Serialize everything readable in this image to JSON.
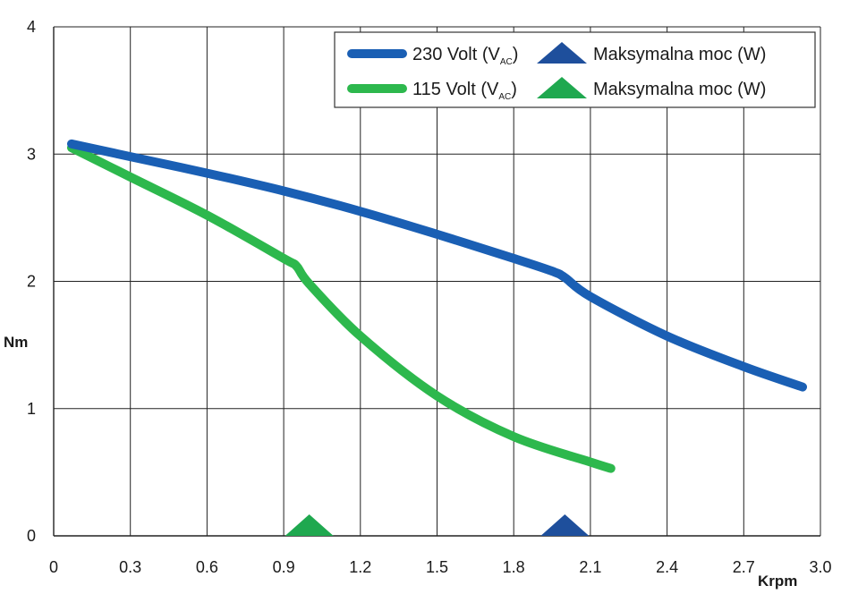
{
  "chart_data": {
    "type": "line",
    "xlabel": "Krpm",
    "ylabel": "Nm",
    "xlim": [
      0,
      3.0
    ],
    "ylim": [
      0,
      4
    ],
    "x_ticks": [
      "0",
      "0.3",
      "0.6",
      "0.9",
      "1.2",
      "1.5",
      "1.8",
      "2.1",
      "2.4",
      "2.7",
      "3.0"
    ],
    "y_ticks": [
      "0",
      "1",
      "2",
      "3",
      "4"
    ],
    "grid": true,
    "legend_position": "top-right",
    "series": [
      {
        "name": "230 Volt (V",
        "name_sub": "AC",
        "name_suffix": ")",
        "color": "#1a5fb4",
        "x": [
          0.07,
          0.3,
          0.6,
          0.9,
          1.2,
          1.5,
          1.8,
          1.95,
          2.0,
          2.1,
          2.4,
          2.7,
          2.93
        ],
        "y": [
          3.08,
          2.98,
          2.85,
          2.71,
          2.55,
          2.37,
          2.18,
          2.08,
          2.03,
          1.88,
          1.57,
          1.33,
          1.17
        ]
      },
      {
        "name": "115 Volt (V",
        "name_sub": "AC",
        "name_suffix": ")",
        "color": "#2db84d",
        "x": [
          0.07,
          0.3,
          0.6,
          0.9,
          0.95,
          1.0,
          1.2,
          1.5,
          1.8,
          2.1,
          2.18
        ],
        "y": [
          3.05,
          2.82,
          2.52,
          2.18,
          2.12,
          1.98,
          1.57,
          1.1,
          0.78,
          0.58,
          0.53
        ]
      }
    ],
    "markers": [
      {
        "label": "Maksymalna moc (W)",
        "x": 2.0,
        "color": "#1e4f9c"
      },
      {
        "label": "Maksymalna moc (W)",
        "x": 1.0,
        "color": "#1fa84f"
      }
    ]
  }
}
